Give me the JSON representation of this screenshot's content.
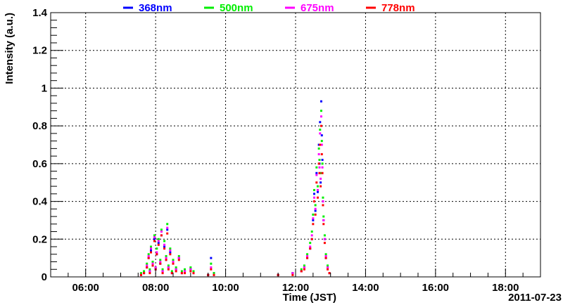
{
  "chart_data": {
    "type": "scatter",
    "xlabel": "Time (JST)",
    "ylabel": "Intensity (a.u.)",
    "date": "2011-07-23",
    "xlim": [
      "05:00",
      "19:00"
    ],
    "ylim": [
      0,
      1.4
    ],
    "grid": true,
    "legend_position": "top",
    "x_ticks": [
      "06:00",
      "08:00",
      "10:00",
      "12:00",
      "14:00",
      "16:00",
      "18:00"
    ],
    "y_ticks": [
      "0",
      "0.2",
      "0.4",
      "0.6",
      "0.8",
      "1",
      "1.2",
      "1.4"
    ],
    "series": [
      {
        "name": "368nm",
        "color": "#0000ff",
        "points": [
          [
            "07:35",
            0.01
          ],
          [
            "07:40",
            0.02
          ],
          [
            "07:45",
            0.05
          ],
          [
            "07:48",
            0.1
          ],
          [
            "07:50",
            0.03
          ],
          [
            "07:52",
            0.14
          ],
          [
            "07:55",
            0.06
          ],
          [
            "07:58",
            0.2
          ],
          [
            "08:00",
            0.04
          ],
          [
            "08:02",
            0.12
          ],
          [
            "08:05",
            0.18
          ],
          [
            "08:08",
            0.07
          ],
          [
            "08:10",
            0.22
          ],
          [
            "08:12",
            0.03
          ],
          [
            "08:15",
            0.16
          ],
          [
            "08:18",
            0.09
          ],
          [
            "08:20",
            0.25
          ],
          [
            "08:22",
            0.05
          ],
          [
            "08:25",
            0.13
          ],
          [
            "08:28",
            0.02
          ],
          [
            "08:30",
            0.08
          ],
          [
            "08:35",
            0.04
          ],
          [
            "08:40",
            0.1
          ],
          [
            "08:45",
            0.02
          ],
          [
            "08:50",
            0.03
          ],
          [
            "09:00",
            0.04
          ],
          [
            "09:05",
            0.02
          ],
          [
            "09:30",
            0.01
          ],
          [
            "09:35",
            0.1
          ],
          [
            "09:40",
            0.02
          ],
          [
            "11:30",
            0.01
          ],
          [
            "11:55",
            0.02
          ],
          [
            "12:10",
            0.03
          ],
          [
            "12:15",
            0.05
          ],
          [
            "12:20",
            0.1
          ],
          [
            "12:25",
            0.15
          ],
          [
            "12:28",
            0.2
          ],
          [
            "12:30",
            0.3
          ],
          [
            "12:32",
            0.44
          ],
          [
            "12:34",
            0.35
          ],
          [
            "12:36",
            0.55
          ],
          [
            "12:38",
            0.45
          ],
          [
            "12:40",
            0.7
          ],
          [
            "12:41",
            0.6
          ],
          [
            "12:42",
            0.82
          ],
          [
            "12:43",
            0.5
          ],
          [
            "12:44",
            0.93
          ],
          [
            "12:45",
            0.75
          ],
          [
            "12:46",
            0.62
          ],
          [
            "12:47",
            0.4
          ],
          [
            "12:48",
            0.3
          ],
          [
            "12:50",
            0.2
          ],
          [
            "12:52",
            0.1
          ],
          [
            "12:55",
            0.05
          ],
          [
            "12:58",
            0.02
          ]
        ]
      },
      {
        "name": "500nm",
        "color": "#00ee00",
        "points": [
          [
            "07:35",
            0.02
          ],
          [
            "07:40",
            0.03
          ],
          [
            "07:45",
            0.07
          ],
          [
            "07:48",
            0.12
          ],
          [
            "07:50",
            0.04
          ],
          [
            "07:52",
            0.16
          ],
          [
            "07:55",
            0.08
          ],
          [
            "07:58",
            0.22
          ],
          [
            "08:00",
            0.05
          ],
          [
            "08:02",
            0.15
          ],
          [
            "08:05",
            0.2
          ],
          [
            "08:08",
            0.09
          ],
          [
            "08:10",
            0.25
          ],
          [
            "08:12",
            0.04
          ],
          [
            "08:15",
            0.19
          ],
          [
            "08:18",
            0.11
          ],
          [
            "08:20",
            0.28
          ],
          [
            "08:22",
            0.06
          ],
          [
            "08:25",
            0.15
          ],
          [
            "08:28",
            0.03
          ],
          [
            "08:30",
            0.09
          ],
          [
            "08:35",
            0.05
          ],
          [
            "08:40",
            0.11
          ],
          [
            "08:45",
            0.03
          ],
          [
            "08:50",
            0.04
          ],
          [
            "09:00",
            0.05
          ],
          [
            "09:05",
            0.03
          ],
          [
            "09:30",
            0.01
          ],
          [
            "09:35",
            0.07
          ],
          [
            "09:40",
            0.02
          ],
          [
            "11:30",
            0.01
          ],
          [
            "11:55",
            0.02
          ],
          [
            "12:10",
            0.04
          ],
          [
            "12:15",
            0.06
          ],
          [
            "12:20",
            0.12
          ],
          [
            "12:25",
            0.18
          ],
          [
            "12:28",
            0.24
          ],
          [
            "12:30",
            0.33
          ],
          [
            "12:32",
            0.46
          ],
          [
            "12:34",
            0.38
          ],
          [
            "12:36",
            0.58
          ],
          [
            "12:38",
            0.48
          ],
          [
            "12:40",
            0.68
          ],
          [
            "12:41",
            0.62
          ],
          [
            "12:42",
            0.78
          ],
          [
            "12:43",
            0.55
          ],
          [
            "12:44",
            0.88
          ],
          [
            "12:45",
            0.72
          ],
          [
            "12:46",
            0.6
          ],
          [
            "12:47",
            0.42
          ],
          [
            "12:48",
            0.32
          ],
          [
            "12:50",
            0.22
          ],
          [
            "12:52",
            0.12
          ],
          [
            "12:55",
            0.06
          ],
          [
            "12:58",
            0.02
          ]
        ]
      },
      {
        "name": "675nm",
        "color": "#ff00ff",
        "points": [
          [
            "07:35",
            0.01
          ],
          [
            "07:40",
            0.02
          ],
          [
            "07:45",
            0.06
          ],
          [
            "07:48",
            0.11
          ],
          [
            "07:50",
            0.03
          ],
          [
            "07:52",
            0.15
          ],
          [
            "07:55",
            0.07
          ],
          [
            "07:58",
            0.21
          ],
          [
            "08:00",
            0.05
          ],
          [
            "08:02",
            0.13
          ],
          [
            "08:05",
            0.19
          ],
          [
            "08:08",
            0.08
          ],
          [
            "08:10",
            0.24
          ],
          [
            "08:12",
            0.03
          ],
          [
            "08:15",
            0.17
          ],
          [
            "08:18",
            0.1
          ],
          [
            "08:20",
            0.26
          ],
          [
            "08:22",
            0.05
          ],
          [
            "08:25",
            0.14
          ],
          [
            "08:28",
            0.02
          ],
          [
            "08:30",
            0.08
          ],
          [
            "08:35",
            0.04
          ],
          [
            "08:40",
            0.1
          ],
          [
            "08:45",
            0.02
          ],
          [
            "08:50",
            0.03
          ],
          [
            "09:00",
            0.04
          ],
          [
            "09:05",
            0.02
          ],
          [
            "09:30",
            0.01
          ],
          [
            "09:35",
            0.05
          ],
          [
            "09:40",
            0.01
          ],
          [
            "11:30",
            0.01
          ],
          [
            "11:55",
            0.02
          ],
          [
            "12:10",
            0.03
          ],
          [
            "12:15",
            0.05
          ],
          [
            "12:20",
            0.11
          ],
          [
            "12:25",
            0.16
          ],
          [
            "12:28",
            0.22
          ],
          [
            "12:30",
            0.31
          ],
          [
            "12:32",
            0.42
          ],
          [
            "12:34",
            0.36
          ],
          [
            "12:36",
            0.54
          ],
          [
            "12:38",
            0.46
          ],
          [
            "12:40",
            0.65
          ],
          [
            "12:41",
            0.58
          ],
          [
            "12:42",
            0.76
          ],
          [
            "12:43",
            0.52
          ],
          [
            "12:44",
            0.85
          ],
          [
            "12:45",
            0.7
          ],
          [
            "12:46",
            0.58
          ],
          [
            "12:47",
            0.4
          ],
          [
            "12:48",
            0.3
          ],
          [
            "12:50",
            0.2
          ],
          [
            "12:52",
            0.11
          ],
          [
            "12:55",
            0.05
          ],
          [
            "12:58",
            0.02
          ]
        ]
      },
      {
        "name": "778nm",
        "color": "#ff0000",
        "points": [
          [
            "07:35",
            0.01
          ],
          [
            "07:40",
            0.02
          ],
          [
            "07:45",
            0.05
          ],
          [
            "07:48",
            0.1
          ],
          [
            "07:50",
            0.02
          ],
          [
            "07:52",
            0.13
          ],
          [
            "07:55",
            0.06
          ],
          [
            "07:58",
            0.19
          ],
          [
            "08:00",
            0.04
          ],
          [
            "08:02",
            0.12
          ],
          [
            "08:05",
            0.17
          ],
          [
            "08:08",
            0.07
          ],
          [
            "08:10",
            0.22
          ],
          [
            "08:12",
            0.02
          ],
          [
            "08:15",
            0.15
          ],
          [
            "08:18",
            0.09
          ],
          [
            "08:20",
            0.23
          ],
          [
            "08:22",
            0.04
          ],
          [
            "08:25",
            0.12
          ],
          [
            "08:28",
            0.02
          ],
          [
            "08:30",
            0.07
          ],
          [
            "08:35",
            0.03
          ],
          [
            "08:40",
            0.09
          ],
          [
            "08:45",
            0.02
          ],
          [
            "08:50",
            0.02
          ],
          [
            "09:00",
            0.03
          ],
          [
            "09:05",
            0.02
          ],
          [
            "09:30",
            0.01
          ],
          [
            "09:35",
            0.04
          ],
          [
            "09:40",
            0.01
          ],
          [
            "11:30",
            0.01
          ],
          [
            "11:55",
            0.01
          ],
          [
            "12:10",
            0.03
          ],
          [
            "12:15",
            0.04
          ],
          [
            "12:20",
            0.1
          ],
          [
            "12:25",
            0.15
          ],
          [
            "12:28",
            0.2
          ],
          [
            "12:30",
            0.28
          ],
          [
            "12:32",
            0.4
          ],
          [
            "12:34",
            0.33
          ],
          [
            "12:36",
            0.5
          ],
          [
            "12:38",
            0.42
          ],
          [
            "12:40",
            0.6
          ],
          [
            "12:41",
            0.55
          ],
          [
            "12:42",
            0.7
          ],
          [
            "12:43",
            0.48
          ],
          [
            "12:44",
            0.8
          ],
          [
            "12:45",
            0.65
          ],
          [
            "12:46",
            0.55
          ],
          [
            "12:47",
            0.38
          ],
          [
            "12:48",
            0.28
          ],
          [
            "12:50",
            0.18
          ],
          [
            "12:52",
            0.1
          ],
          [
            "12:55",
            0.04
          ],
          [
            "12:58",
            0.02
          ]
        ]
      }
    ]
  }
}
